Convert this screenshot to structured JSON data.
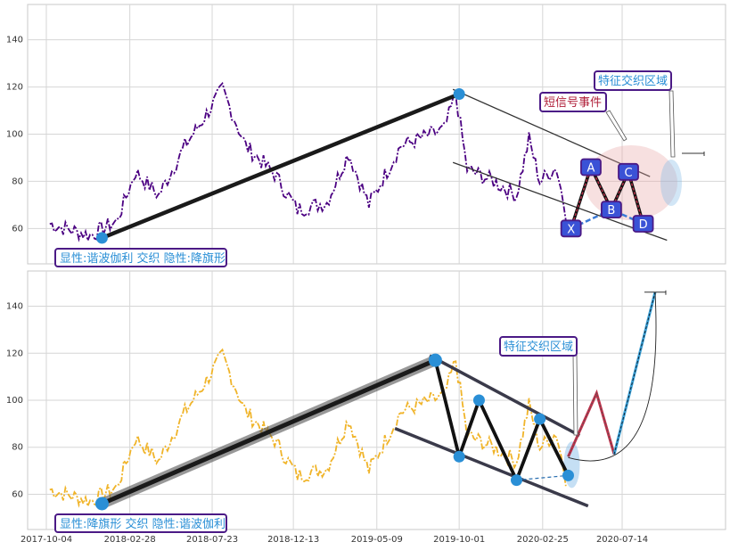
{
  "colors": {
    "panel_bg": "#ffffff",
    "grid": "#d6d6d6",
    "series_top": "#4b0082",
    "series_bottom": "#f0b429",
    "trend": "#1a1a1a",
    "marker": "#2a8fd6",
    "label_text": "#2a8fd6",
    "label_border": "#4b1a86",
    "event_text": "#b0203a",
    "pattern_box": "#3a52d6",
    "highlight": "#e8a6a6"
  },
  "chart_data": [
    {
      "type": "line",
      "panel": "top",
      "ylim": [
        45,
        155
      ],
      "yticks": [
        "60",
        "80",
        "100",
        "120",
        "140"
      ],
      "series": [
        {
          "values_range": [
            55,
            120
          ]
        }
      ],
      "trend_points": [
        {
          "date": "2018-01-10",
          "value": 56
        },
        {
          "date": "2019-10-01",
          "value": 117
        }
      ],
      "channel": [
        {
          "from": {
            "date": "2019-09-20",
            "value": 119
          },
          "to": {
            "date": "2020-09-01",
            "value": 82
          }
        },
        {
          "from": {
            "date": "2019-09-20",
            "value": 88
          },
          "to": {
            "date": "2020-10-01",
            "value": 55
          }
        }
      ],
      "harmonic_points": [
        {
          "label": "X",
          "date": "2020-04-15",
          "value": 60
        },
        {
          "label": "A",
          "date": "2020-05-20",
          "value": 86
        },
        {
          "label": "B",
          "date": "2020-06-25",
          "value": 68
        },
        {
          "label": "C",
          "date": "2020-07-25",
          "value": 84
        },
        {
          "label": "D",
          "date": "2020-08-20",
          "value": 62
        }
      ],
      "annotations": {
        "legend_label": "显性:谐波伽利 交织 隐性:降旗形",
        "event_label": "短信号事件",
        "region_label": "特征交织区域"
      }
    },
    {
      "type": "line",
      "panel": "bottom",
      "ylim": [
        45,
        155
      ],
      "yticks": [
        "60",
        "80",
        "100",
        "120",
        "140"
      ],
      "xticks": [
        "2017-10-04",
        "2018-02-28",
        "2018-07-23",
        "2018-12-13",
        "2019-05-09",
        "2019-10-01",
        "2020-02-25",
        "2020-07-14"
      ],
      "series": [
        {
          "values_range": [
            55,
            120
          ]
        }
      ],
      "trend_points": [
        {
          "date": "2018-01-10",
          "value": 56
        },
        {
          "date": "2019-08-20",
          "value": 117
        }
      ],
      "channel": [
        {
          "from": {
            "date": "2019-08-10",
            "value": 119
          },
          "to": {
            "date": "2020-04-30",
            "value": 85
          }
        },
        {
          "from": {
            "date": "2019-06-10",
            "value": 88
          },
          "to": {
            "date": "2020-05-15",
            "value": 55
          }
        }
      ],
      "zigzag": [
        {
          "date": "2019-08-20",
          "value": 117
        },
        {
          "date": "2019-10-01",
          "value": 76
        },
        {
          "date": "2019-11-05",
          "value": 100
        },
        {
          "date": "2020-01-10",
          "value": 66
        },
        {
          "date": "2020-02-20",
          "value": 92
        },
        {
          "date": "2020-04-10",
          "value": 68
        }
      ],
      "projection": [
        {
          "date": "2020-04-10",
          "value": 76
        },
        {
          "date": "2020-05-30",
          "value": 103
        },
        {
          "date": "2020-06-30",
          "value": 77
        },
        {
          "date": "2020-09-10",
          "value": 146
        }
      ],
      "annotations": {
        "legend_label": "显性:降旗形 交织 隐性:谐波伽利",
        "region_label": "特征交织区域"
      }
    }
  ]
}
